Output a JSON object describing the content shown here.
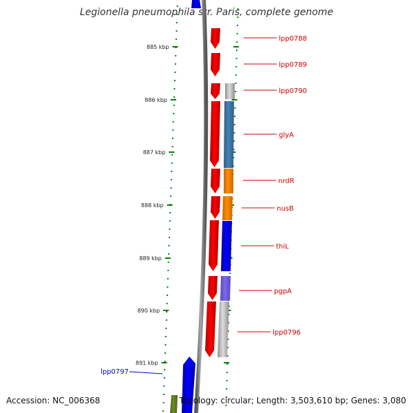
{
  "title": "Legionella pneumophila str. Paris, complete genome",
  "footer": {
    "accession": "Accession: NC_006368",
    "summary": "Topology: circular; Length: 3,503,610 bp; Genes: 3,080"
  },
  "scale": {
    "ticks": [
      "885 kbp",
      "886 kbp",
      "887 kbp",
      "888 kbp",
      "889 kbp",
      "890 kbp",
      "891 kbp"
    ]
  },
  "colors": {
    "cds": "#ff0000",
    "backbone": "#808080",
    "tick": "#008000",
    "label_forward": "#cc0000",
    "label_reverse": "#0000cc",
    "gene_forward": "#0000ff",
    "cog_steelblue": "#4682b4",
    "cog_orange": "#ff8c00",
    "cog_blue": "#0000ff",
    "cog_purple": "#7b68ee",
    "cog_gray": "#c0c0c0",
    "olive": "#6b8e23"
  },
  "genes": [
    {
      "name": "lpp0788",
      "cog": null
    },
    {
      "name": "lpp0789",
      "cog": null
    },
    {
      "name": "lpp0790",
      "cog": "gray"
    },
    {
      "name": "glyA",
      "cog": "steelblue"
    },
    {
      "name": "nrdR",
      "cog": "orange"
    },
    {
      "name": "nusB",
      "cog": "orange"
    },
    {
      "name": "thiL",
      "cog": "blue"
    },
    {
      "name": "pgpA",
      "cog": "purple"
    },
    {
      "name": "lpp0796",
      "cog": "gray"
    },
    {
      "name": "lpp0797",
      "cog": null
    }
  ]
}
